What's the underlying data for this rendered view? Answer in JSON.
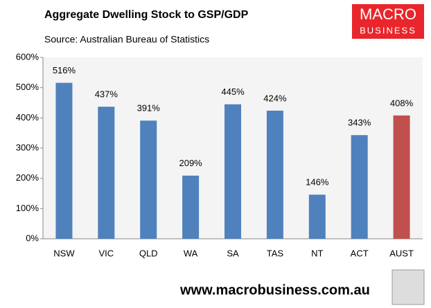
{
  "chart_data": {
    "type": "bar",
    "title": "Aggregate Dwelling Stock to GSP/GDP",
    "subtitle": "Source: Australian Bureau of Statistics",
    "categories": [
      "NSW",
      "VIC",
      "QLD",
      "WA",
      "SA",
      "TAS",
      "NT",
      "ACT",
      "AUST"
    ],
    "values": [
      516,
      437,
      391,
      209,
      445,
      424,
      146,
      343,
      408
    ],
    "value_labels": [
      "516%",
      "437%",
      "391%",
      "209%",
      "445%",
      "424%",
      "146%",
      "343%",
      "408%"
    ],
    "colors": [
      "#4f81bd",
      "#4f81bd",
      "#4f81bd",
      "#4f81bd",
      "#4f81bd",
      "#4f81bd",
      "#4f81bd",
      "#4f81bd",
      "#c0504d"
    ],
    "ylim": [
      0,
      600
    ],
    "yticks": [
      {
        "value": 0,
        "label": "0%"
      },
      {
        "value": 100,
        "label": "100%"
      },
      {
        "value": 200,
        "label": "200%"
      },
      {
        "value": 300,
        "label": "300%"
      },
      {
        "value": 400,
        "label": "400%"
      },
      {
        "value": 500,
        "label": "500%"
      },
      {
        "value": 600,
        "label": "600%"
      }
    ],
    "grid": false
  },
  "logo": {
    "line1": "MACRO",
    "line2": "BUSINESS"
  },
  "footer": "www.macrobusiness.com.au"
}
